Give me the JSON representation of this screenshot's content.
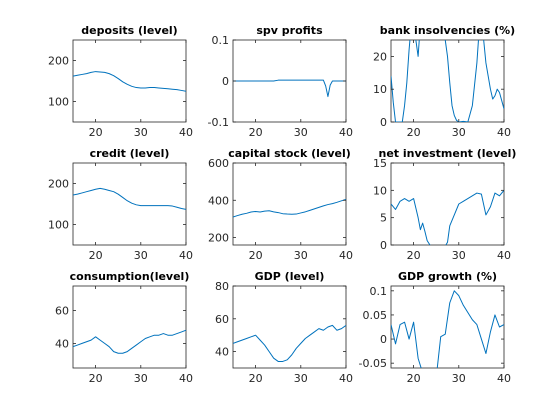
{
  "chart_data": [
    {
      "type": "line",
      "title": "deposits (level)",
      "xlim": [
        15,
        40
      ],
      "ylim": [
        50,
        250
      ],
      "xticks": [
        20,
        30,
        40
      ],
      "yticks": [
        100,
        200
      ],
      "x": [
        15,
        16,
        17,
        18,
        19,
        20,
        21,
        22,
        23,
        24,
        25,
        26,
        27,
        28,
        29,
        30,
        31,
        32,
        33,
        34,
        35,
        36,
        37,
        38,
        39,
        40
      ],
      "series": [
        {
          "values": [
            162,
            164,
            166,
            168,
            171,
            173,
            172,
            171,
            168,
            163,
            156,
            148,
            142,
            137,
            134,
            133,
            133,
            134,
            134,
            133,
            132,
            131,
            130,
            129,
            127,
            125
          ]
        }
      ]
    },
    {
      "type": "line",
      "title": "spv profits",
      "xlim": [
        15,
        40
      ],
      "ylim": [
        -0.1,
        0.1
      ],
      "xticks": [
        20,
        30,
        40
      ],
      "yticks": [
        -0.1,
        0,
        0.1
      ],
      "x": [
        15,
        16,
        17,
        18,
        19,
        20,
        21,
        22,
        23,
        24,
        25,
        26,
        27,
        28,
        29,
        30,
        31,
        32,
        33,
        34,
        35,
        35.5,
        36,
        36.5,
        37,
        38,
        39,
        40
      ],
      "series": [
        {
          "values": [
            0,
            0,
            0,
            0,
            0,
            0,
            0,
            0,
            0,
            0,
            0.002,
            0.002,
            0.002,
            0.002,
            0.002,
            0.002,
            0.002,
            0.002,
            0.002,
            0.002,
            0.002,
            -0.012,
            -0.038,
            -0.01,
            0,
            0,
            0,
            0
          ]
        }
      ]
    },
    {
      "type": "line",
      "title": "bank insolvencies (%)",
      "xlim": [
        15,
        40
      ],
      "ylim": [
        0,
        25
      ],
      "xticks": [
        20,
        30,
        40
      ],
      "yticks": [
        0,
        10,
        20
      ],
      "x": [
        15,
        15.5,
        16,
        16.5,
        17,
        17.5,
        18,
        18.5,
        19,
        19.5,
        20,
        20.5,
        21,
        21.5,
        22,
        23,
        24,
        25,
        26,
        27,
        27.5,
        28,
        28.5,
        29,
        29.5,
        30,
        31,
        32,
        33,
        34,
        34.5,
        35,
        35.5,
        36,
        37,
        37.5,
        38,
        38.5,
        39,
        40
      ],
      "series": [
        {
          "values": [
            14,
            6,
            0,
            0,
            0,
            0,
            5,
            12,
            22,
            30,
            30,
            25,
            20,
            30,
            30,
            30,
            30,
            30,
            30,
            25,
            20,
            12,
            5,
            2,
            0.5,
            0,
            0.2,
            0,
            5,
            18,
            28,
            30,
            25,
            18,
            10,
            7,
            8,
            10,
            9,
            4
          ]
        }
      ]
    },
    {
      "type": "line",
      "title": "credit (level)",
      "xlim": [
        15,
        40
      ],
      "ylim": [
        50,
        250
      ],
      "xticks": [
        20,
        30,
        40
      ],
      "yticks": [
        100,
        200
      ],
      "x": [
        15,
        16,
        17,
        18,
        19,
        20,
        21,
        22,
        23,
        24,
        25,
        26,
        27,
        28,
        29,
        30,
        31,
        32,
        33,
        34,
        35,
        36,
        37,
        38,
        39,
        40
      ],
      "series": [
        {
          "values": [
            172,
            174,
            177,
            180,
            183,
            186,
            188,
            186,
            183,
            180,
            174,
            166,
            158,
            152,
            148,
            146,
            146,
            146,
            146,
            146,
            146,
            146,
            145,
            142,
            139,
            137
          ]
        }
      ]
    },
    {
      "type": "line",
      "title": "capital stock (level)",
      "xlim": [
        15,
        40
      ],
      "ylim": [
        160,
        600
      ],
      "xticks": [
        20,
        30,
        40
      ],
      "yticks": [
        200,
        400,
        600
      ],
      "x": [
        15,
        16,
        17,
        18,
        19,
        20,
        21,
        22,
        23,
        24,
        25,
        26,
        27,
        28,
        29,
        30,
        31,
        32,
        33,
        34,
        35,
        36,
        37,
        38,
        39,
        40
      ],
      "series": [
        {
          "values": [
            310,
            318,
            325,
            330,
            337,
            340,
            337,
            342,
            344,
            338,
            334,
            328,
            326,
            325,
            326,
            332,
            338,
            346,
            354,
            362,
            370,
            377,
            382,
            389,
            397,
            405
          ]
        }
      ]
    },
    {
      "type": "line",
      "title": "net investment (level)",
      "xlim": [
        15,
        40
      ],
      "ylim": [
        0,
        15
      ],
      "xticks": [
        20,
        30,
        40
      ],
      "yticks": [
        0,
        5,
        10,
        15
      ],
      "x": [
        15,
        16,
        17,
        18,
        19,
        20,
        21,
        21.5,
        22,
        22.5,
        23,
        24,
        25,
        26,
        27,
        27.5,
        28,
        29,
        30,
        31,
        32,
        33,
        34,
        35,
        36,
        37,
        38,
        39,
        40
      ],
      "series": [
        {
          "values": [
            7.5,
            6.5,
            8,
            8.5,
            8,
            8.5,
            5,
            2.8,
            4,
            2.5,
            0.8,
            -0.5,
            -0.3,
            -0.3,
            -0.2,
            0.5,
            3.5,
            5.5,
            7.5,
            8,
            8.5,
            9,
            9.5,
            9.3,
            5.5,
            7,
            9.5,
            9,
            10
          ]
        }
      ]
    },
    {
      "type": "line",
      "title": "consumption(level)",
      "xlim": [
        15,
        40
      ],
      "ylim": [
        25,
        75
      ],
      "xticks": [
        20,
        30,
        40
      ],
      "yticks": [
        40,
        60
      ],
      "x": [
        15,
        16,
        17,
        18,
        19,
        20,
        21,
        22,
        23,
        24,
        25,
        26,
        27,
        28,
        29,
        30,
        31,
        32,
        33,
        34,
        35,
        36,
        37,
        38,
        39,
        40
      ],
      "series": [
        {
          "values": [
            38,
            39,
            40,
            41,
            42,
            44,
            42,
            40,
            38,
            35,
            34,
            34,
            35,
            37,
            39,
            41,
            43,
            44,
            45,
            45,
            46,
            45,
            45,
            46,
            47,
            48
          ]
        }
      ]
    },
    {
      "type": "line",
      "title": "GDP (level)",
      "xlim": [
        15,
        40
      ],
      "ylim": [
        30,
        80
      ],
      "xticks": [
        20,
        30,
        40
      ],
      "yticks": [
        40,
        60,
        80
      ],
      "x": [
        15,
        16,
        17,
        18,
        19,
        20,
        21,
        22,
        23,
        24,
        25,
        26,
        27,
        28,
        29,
        30,
        31,
        32,
        33,
        34,
        35,
        36,
        37,
        38,
        39,
        40
      ],
      "series": [
        {
          "values": [
            45,
            46,
            47,
            48,
            49,
            50,
            47,
            44,
            40,
            36,
            34,
            34,
            35,
            38,
            42,
            45,
            48,
            50,
            52,
            54,
            53,
            55,
            56,
            53,
            54,
            56
          ]
        }
      ]
    },
    {
      "type": "line",
      "title": "GDP growth (%)",
      "xlim": [
        15,
        40
      ],
      "ylim": [
        -0.06,
        0.11
      ],
      "xticks": [
        20,
        30,
        40
      ],
      "yticks": [
        -0.05,
        0,
        0.05,
        0.1
      ],
      "x": [
        15,
        16,
        17,
        18,
        19,
        20,
        21,
        22,
        23,
        24,
        25,
        26,
        27,
        28,
        29,
        30,
        31,
        32,
        33,
        34,
        35,
        36,
        37,
        38,
        39,
        40
      ],
      "series": [
        {
          "values": [
            0.03,
            -0.01,
            0.03,
            0.035,
            0,
            0.035,
            -0.04,
            -0.07,
            -0.09,
            -0.07,
            -0.08,
            0.005,
            0.01,
            0.075,
            0.1,
            0.09,
            0.07,
            0.055,
            0.04,
            0.03,
            0,
            -0.03,
            0.015,
            0.05,
            0.025,
            0.03
          ]
        }
      ]
    }
  ]
}
